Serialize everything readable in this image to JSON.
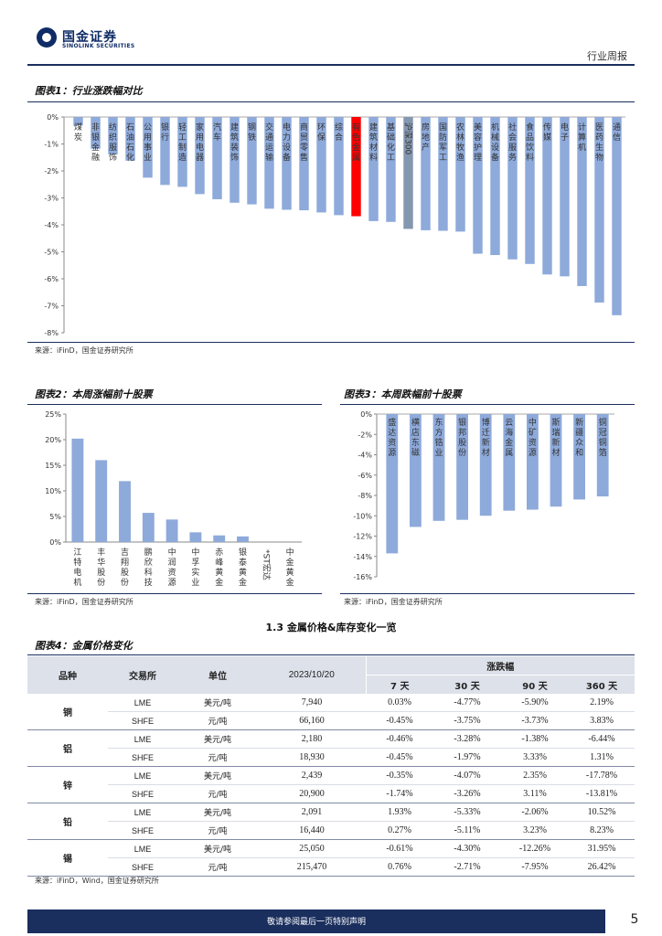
{
  "header": {
    "logo_cn": "国金证券",
    "logo_en": "SINOLINK SECURITIES",
    "report_type": "行业周报"
  },
  "fig1": {
    "title": "图表1：行业涨跌幅对比",
    "source": "来源：iFinD，国金证券研究所"
  },
  "fig2": {
    "title": "图表2：本周涨幅前十股票",
    "source": "来源：iFinD，国金证券研究所"
  },
  "fig3": {
    "title": "图表3：本周跌幅前十股票",
    "source": "来源：iFinD，国金证券研究所"
  },
  "section_heading": "1.3 金属价格&库存变化一览",
  "fig4": {
    "title": "图表4：金属价格变化",
    "source": "来源：iFinD，Wind，国金证券研究所",
    "headers": {
      "variety": "品种",
      "exchange": "交易所",
      "unit": "单位",
      "date": "2023/10/20",
      "change": "涨跌幅",
      "d7": "7 天",
      "d30": "30 天",
      "d90": "90 天",
      "d360": "360 天"
    },
    "rows": [
      {
        "metal": "铜",
        "items": [
          {
            "exchange": "LME",
            "unit": "美元/吨",
            "price": "7,940",
            "d7": "0.03%",
            "d30": "-4.77%",
            "d90": "-5.90%",
            "d360": "2.19%"
          },
          {
            "exchange": "SHFE",
            "unit": "元/吨",
            "price": "66,160",
            "d7": "-0.45%",
            "d30": "-3.75%",
            "d90": "-3.73%",
            "d360": "3.83%"
          }
        ]
      },
      {
        "metal": "铝",
        "items": [
          {
            "exchange": "LME",
            "unit": "美元/吨",
            "price": "2,180",
            "d7": "-0.46%",
            "d30": "-3.28%",
            "d90": "-1.38%",
            "d360": "-6.44%"
          },
          {
            "exchange": "SHFE",
            "unit": "元/吨",
            "price": "18,930",
            "d7": "-0.45%",
            "d30": "-1.97%",
            "d90": "3.33%",
            "d360": "1.31%"
          }
        ]
      },
      {
        "metal": "锌",
        "items": [
          {
            "exchange": "LME",
            "unit": "美元/吨",
            "price": "2,439",
            "d7": "-0.35%",
            "d30": "-4.07%",
            "d90": "2.35%",
            "d360": "-17.78%"
          },
          {
            "exchange": "SHFE",
            "unit": "元/吨",
            "price": "20,900",
            "d7": "-1.74%",
            "d30": "-3.26%",
            "d90": "3.11%",
            "d360": "-13.81%"
          }
        ]
      },
      {
        "metal": "铅",
        "items": [
          {
            "exchange": "LME",
            "unit": "美元/吨",
            "price": "2,091",
            "d7": "1.93%",
            "d30": "-5.33%",
            "d90": "-2.06%",
            "d360": "10.52%"
          },
          {
            "exchange": "SHFE",
            "unit": "元/吨",
            "price": "16,440",
            "d7": "0.27%",
            "d30": "-5.11%",
            "d90": "3.23%",
            "d360": "8.23%"
          }
        ]
      },
      {
        "metal": "锡",
        "items": [
          {
            "exchange": "LME",
            "unit": "美元/吨",
            "price": "25,050",
            "d7": "-0.61%",
            "d30": "-4.30%",
            "d90": "-12.26%",
            "d360": "31.95%"
          },
          {
            "exchange": "SHFE",
            "unit": "元/吨",
            "price": "215,470",
            "d7": "0.76%",
            "d30": "-2.71%",
            "d90": "-7.95%",
            "d360": "26.42%"
          }
        ]
      }
    ]
  },
  "footer": {
    "disclaimer": "敬请参阅最后一页特别声明",
    "page": "5"
  },
  "colors": {
    "bar": "#8eaadb",
    "highlight": "#ff0000",
    "benchmark": "#8497b0",
    "navy": "#1a2f5e"
  },
  "chart_data": [
    {
      "type": "bar",
      "title": "图表1：行业涨跌幅对比",
      "categories": [
        "煤炭",
        "非银金融",
        "纺织服饰",
        "石油石化",
        "公用事业",
        "银行",
        "轻工制造",
        "家用电器",
        "汽车",
        "建筑装饰",
        "钢铁",
        "交通运输",
        "电力设备",
        "商贸零售",
        "环保",
        "综合",
        "有色金属",
        "建筑材料",
        "基础化工",
        "沪深300",
        "房地产",
        "国防军工",
        "农林牧渔",
        "美容护理",
        "机械设备",
        "社会服务",
        "食品饮料",
        "传媒",
        "电子",
        "计算机",
        "医药生物",
        "通信"
      ],
      "values": [
        -0.32,
        -1.18,
        -1.38,
        -1.62,
        -2.25,
        -2.52,
        -2.59,
        -2.86,
        -3.05,
        -3.18,
        -3.24,
        -3.4,
        -3.44,
        -3.46,
        -3.54,
        -3.64,
        -3.68,
        -3.86,
        -3.89,
        -4.15,
        -4.2,
        -4.22,
        -4.25,
        -5.07,
        -5.12,
        -5.28,
        -5.45,
        -5.84,
        -5.91,
        -6.27,
        -6.88,
        -7.35
      ],
      "highlight": "有色金属",
      "benchmark": "沪深300",
      "ylim": [
        -8,
        0
      ],
      "yticks": [
        "0%",
        "-1%",
        "-2%",
        "-3%",
        "-4%",
        "-5%",
        "-6%",
        "-7%",
        "-8%"
      ],
      "grid": false,
      "legend": "none"
    },
    {
      "type": "bar",
      "title": "图表2：本周涨幅前十股票",
      "categories": [
        "江特电机",
        "丰华股份",
        "吉翔股份",
        "鹏欣科技",
        "中润资源",
        "中孚实业",
        "赤峰黄金",
        "银泰黄金",
        "*ST宏达",
        "中金黄金"
      ],
      "values": [
        20.2,
        16.0,
        11.9,
        5.7,
        4.4,
        1.9,
        1.3,
        1.1,
        0.0,
        0.0
      ],
      "ylim": [
        0,
        25
      ],
      "yticks": [
        "25%",
        "20%",
        "15%",
        "10%",
        "5%",
        "0%"
      ],
      "grid": false,
      "legend": "none"
    },
    {
      "type": "bar",
      "title": "图表3：本周跌幅前十股票",
      "categories": [
        "盛达资源",
        "横店东磁",
        "东方锆业",
        "银邦股份",
        "博迁新材",
        "云海金属",
        "中矿资源",
        "斯瑞新材",
        "新疆众和",
        "铜冠铜箔"
      ],
      "values": [
        -13.7,
        -11.1,
        -10.5,
        -10.4,
        -10.0,
        -9.5,
        -9.4,
        -9.1,
        -8.4,
        -8.1
      ],
      "ylim": [
        -16,
        0
      ],
      "yticks": [
        "0%",
        "-2%",
        "-4%",
        "-6%",
        "-8%",
        "-10%",
        "-12%",
        "-14%",
        "-16%"
      ],
      "grid": false,
      "legend": "none"
    }
  ]
}
